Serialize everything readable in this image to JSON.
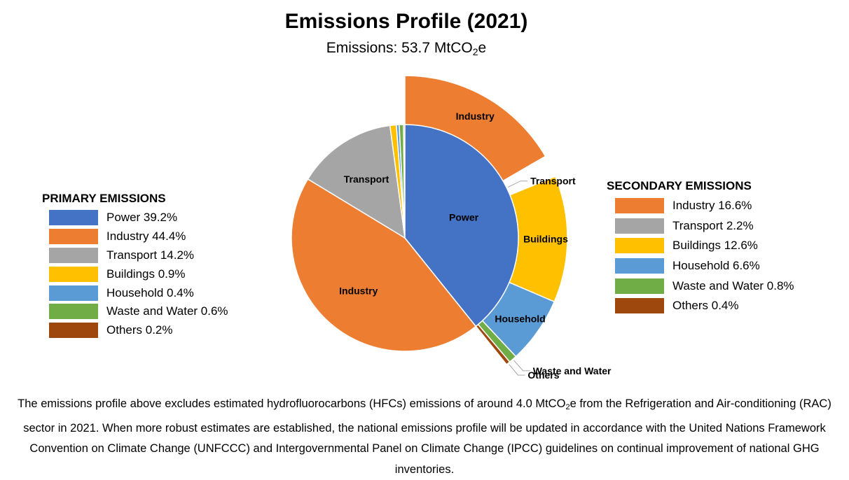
{
  "title": "Emissions Profile (2021)",
  "subtitle": {
    "prefix": "Emissions: 53.7 MtCO",
    "sub": "2",
    "suffix": "e"
  },
  "chart_data": {
    "type": "pie",
    "title": "Emissions Profile (2021)",
    "subtitle": "Emissions: 53.7 MtCO2e",
    "primary": {
      "legend_title": "PRIMARY EMISSIONS",
      "legend_placement": "left",
      "slices": [
        {
          "name": "Power",
          "value": 39.2,
          "color": "#4472C4",
          "slice_label": "Power",
          "legend_label": "Power 39.2%"
        },
        {
          "name": "Industry",
          "value": 44.4,
          "color": "#ED7D31",
          "slice_label": "Industry",
          "legend_label": "Industry 44.4%"
        },
        {
          "name": "Transport",
          "value": 14.2,
          "color": "#A5A5A5",
          "slice_label": "Transport",
          "legend_label": "Transport 14.2%"
        },
        {
          "name": "Buildings",
          "value": 0.9,
          "color": "#FFC000",
          "slice_label": "",
          "legend_label": "Buildings 0.9%"
        },
        {
          "name": "Household",
          "value": 0.4,
          "color": "#5B9BD5",
          "slice_label": "",
          "legend_label": "Household 0.4%"
        },
        {
          "name": "Waste and Water",
          "value": 0.6,
          "color": "#70AD47",
          "slice_label": "",
          "legend_label": "Waste and Water 0.6%"
        },
        {
          "name": "Others",
          "value": 0.2,
          "color": "#9E480E",
          "slice_label": "",
          "legend_label": "Others 0.2%"
        }
      ]
    },
    "secondary": {
      "legend_title": "SECONDARY EMISSIONS",
      "legend_placement": "right",
      "slices": [
        {
          "name": "Industry",
          "value": 16.6,
          "color": "#ED7D31",
          "slice_label": "Industry",
          "legend_label": "Industry 16.6%"
        },
        {
          "name": "Transport",
          "value": 2.2,
          "color": "#A5A5A5",
          "slice_label": "Transport",
          "legend_label": "Transport 2.2%"
        },
        {
          "name": "Buildings",
          "value": 12.6,
          "color": "#FFC000",
          "slice_label": "Buildings",
          "legend_label": "Buildings 12.6%"
        },
        {
          "name": "Household",
          "value": 6.6,
          "color": "#5B9BD5",
          "slice_label": "Household",
          "legend_label": "Household 6.6%"
        },
        {
          "name": "Waste and Water",
          "value": 0.8,
          "color": "#70AD47",
          "slice_label": "Waste and Water",
          "legend_label": "Waste and Water 0.8%"
        },
        {
          "name": "Others",
          "value": 0.4,
          "color": "#9E480E",
          "slice_label": "Others",
          "legend_label": "Others 0.4%"
        }
      ]
    }
  },
  "footnote": {
    "part1": "The emissions profile above excludes estimated hydrofluorocarbons (HFCs) emissions of around 4.0 MtCO",
    "sub": "2",
    "part2": "e from the Refrigeration and Air-conditioning (RAC) sector in 2021. When more robust estimates are established, the national emissions profile will be updated in accordance with the United Nations Framework Convention on Climate Change (UNFCCC) and Intergovernmental Panel on Climate Change (IPCC) guidelines on continual improvement of national GHG inventories."
  }
}
